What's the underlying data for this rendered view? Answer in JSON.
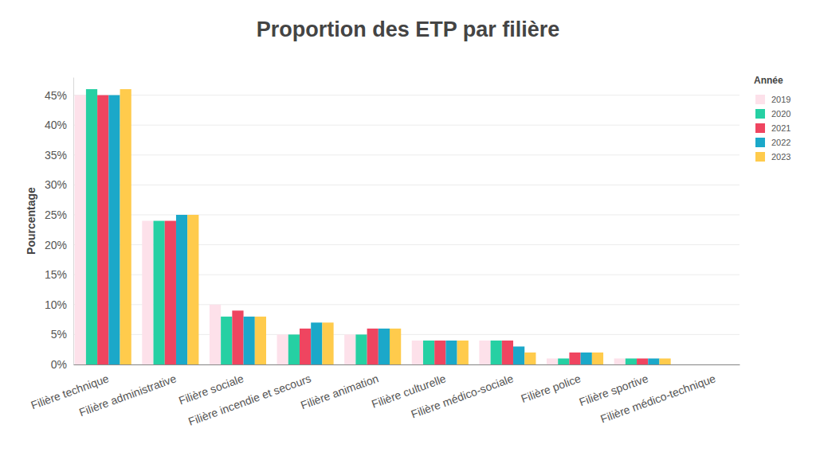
{
  "chart_data": {
    "type": "bar",
    "title": "Proportion des ETP par filière",
    "y_label": "Pourcentage",
    "legend_title": "Année",
    "legend": "right",
    "grid": true,
    "categories": [
      "Filière technique",
      "Filière administrative",
      "Filière sociale",
      "Filière incendie et secours",
      "Filière animation",
      "Filière culturelle",
      "Filière médico-sociale",
      "Filière police",
      "Filière sportive",
      "Filière médico-technique"
    ],
    "series": [
      {
        "name": "2019",
        "color": "#fde1ea",
        "values": [
          45,
          24,
          10,
          5,
          5,
          4,
          4,
          1,
          1,
          0
        ]
      },
      {
        "name": "2020",
        "color": "#26d0a3",
        "values": [
          46,
          24,
          8,
          5,
          5,
          4,
          4,
          1,
          1,
          0
        ]
      },
      {
        "name": "2021",
        "color": "#ef4560",
        "values": [
          45,
          24,
          9,
          6,
          6,
          4,
          4,
          2,
          1,
          0
        ]
      },
      {
        "name": "2022",
        "color": "#1ba8c9",
        "values": [
          45,
          25,
          8,
          7,
          6,
          4,
          3,
          2,
          1,
          0
        ]
      },
      {
        "name": "2023",
        "color": "#ffcb4c",
        "values": [
          46,
          25,
          8,
          7,
          6,
          4,
          2,
          2,
          1,
          0
        ]
      }
    ],
    "ylim": [
      0,
      48
    ],
    "yticks": [
      {
        "value": 0,
        "label": "0%"
      },
      {
        "value": 5,
        "label": "5%"
      },
      {
        "value": 10,
        "label": "10%"
      },
      {
        "value": 15,
        "label": "15%"
      },
      {
        "value": 20,
        "label": "20%"
      },
      {
        "value": 25,
        "label": "25%"
      },
      {
        "value": 30,
        "label": "30%"
      },
      {
        "value": 35,
        "label": "35%"
      },
      {
        "value": 40,
        "label": "40%"
      },
      {
        "value": 45,
        "label": "45%"
      }
    ]
  }
}
